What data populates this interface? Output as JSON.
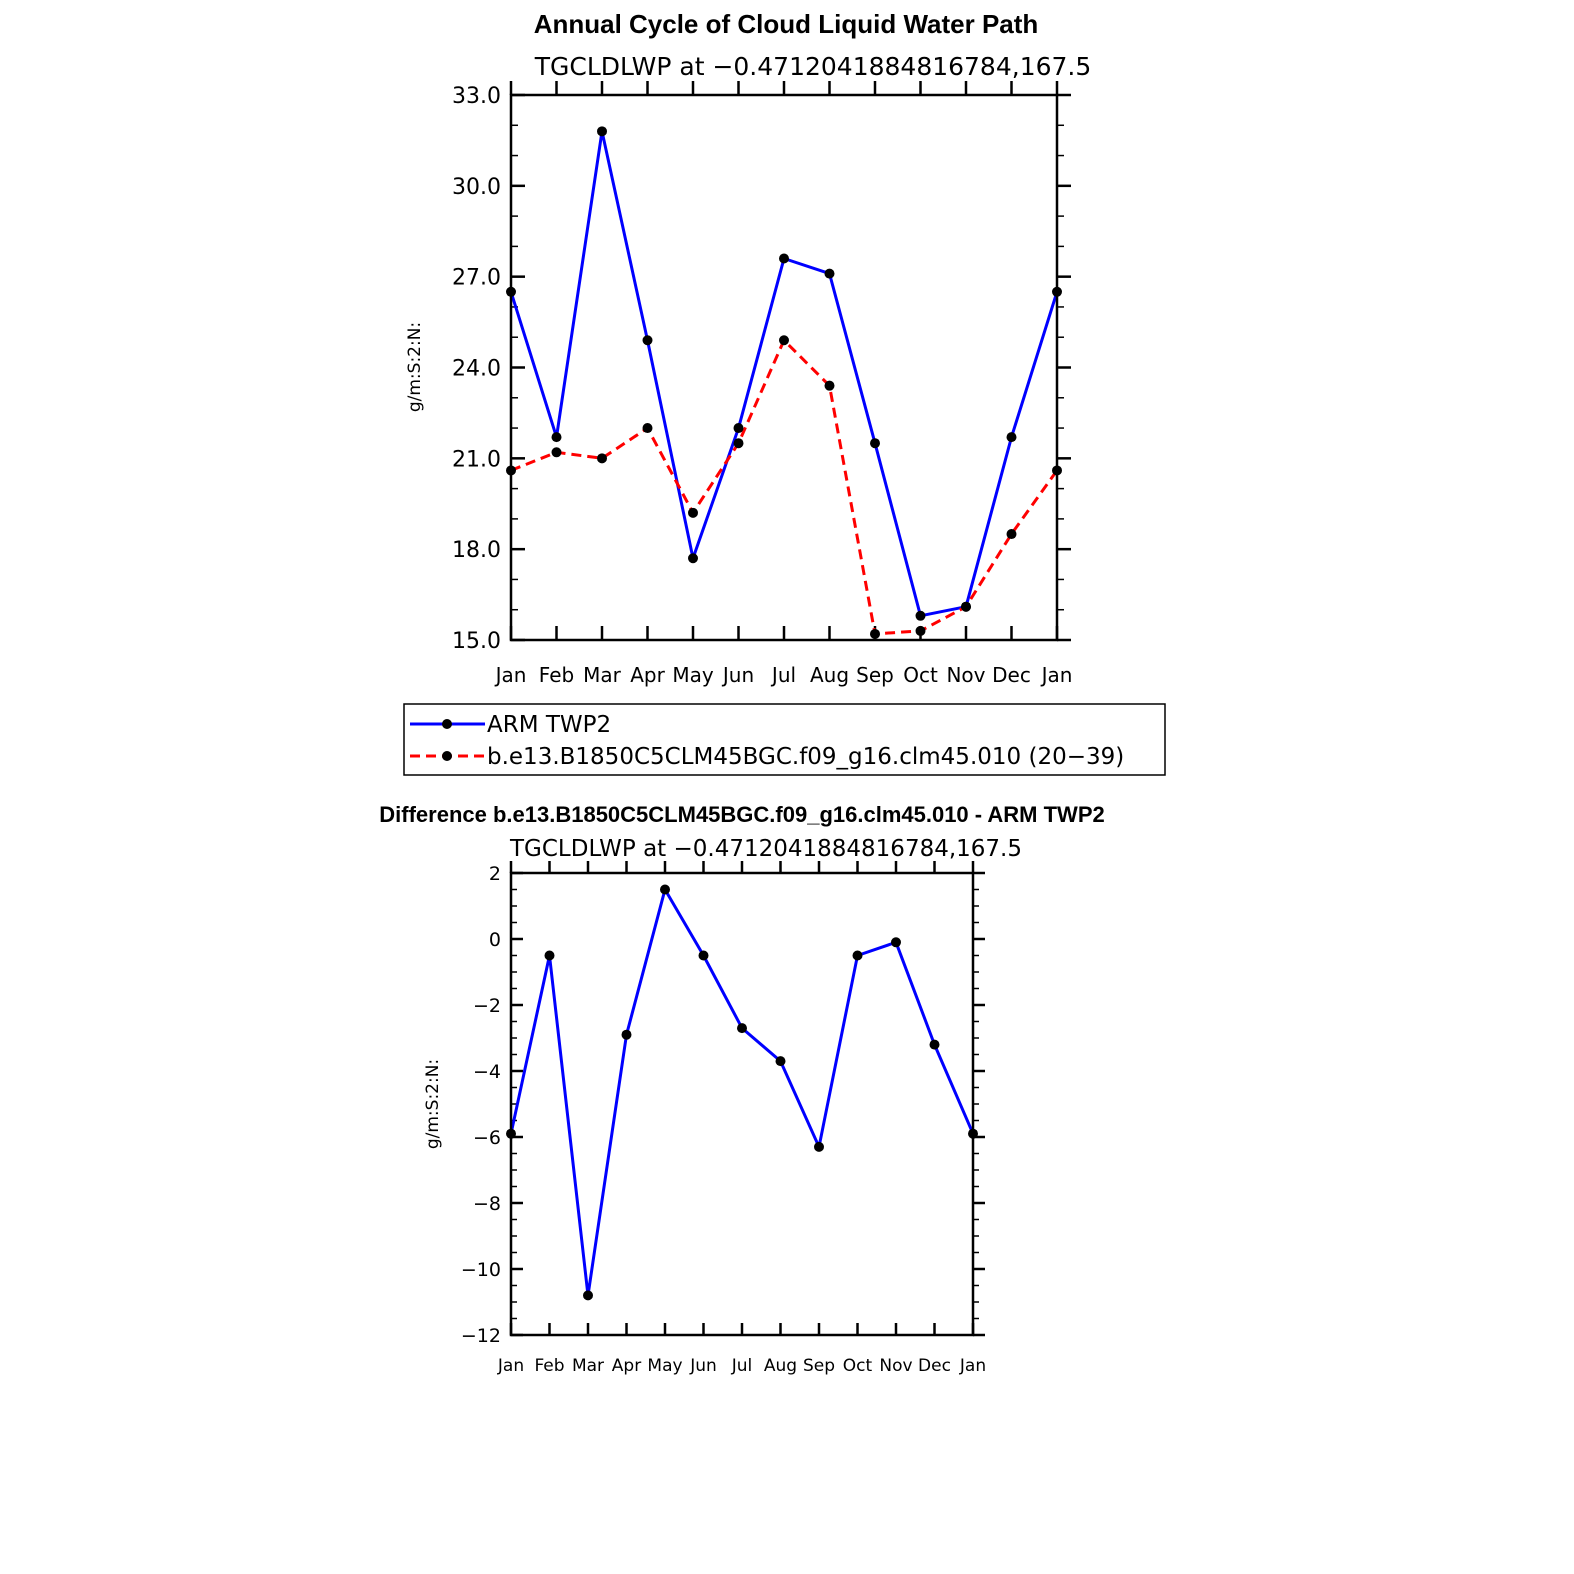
{
  "chart_data": [
    {
      "type": "line",
      "title": "Annual Cycle of Cloud Liquid Water Path",
      "subtitle": "TGCLDLWP at −0.4712041884816784,167.5",
      "xlabel": "",
      "ylabel": "g/m:S:2:N:",
      "ylim": [
        15.0,
        33.0
      ],
      "yticks": [
        "15.0",
        "18.0",
        "21.0",
        "24.0",
        "27.0",
        "30.0",
        "33.0"
      ],
      "categories": [
        "Jan",
        "Feb",
        "Mar",
        "Apr",
        "May",
        "Jun",
        "Jul",
        "Aug",
        "Sep",
        "Oct",
        "Nov",
        "Dec",
        "Jan"
      ],
      "series": [
        {
          "name": "ARM TWP2",
          "color": "#0000ff",
          "dash": "solid",
          "values": [
            26.5,
            21.7,
            31.8,
            24.9,
            17.7,
            22.0,
            27.6,
            27.1,
            21.5,
            15.8,
            16.1,
            21.7,
            26.5
          ]
        },
        {
          "name": "b.e13.B1850C5CLM45BGC.f09_g16.clm45.010 (20−39)",
          "color": "#ff0000",
          "dash": "dashed",
          "values": [
            20.6,
            21.2,
            21.0,
            22.0,
            19.2,
            21.5,
            24.9,
            23.4,
            15.2,
            15.3,
            16.1,
            18.5,
            20.6
          ]
        }
      ],
      "legend": "bottom"
    },
    {
      "type": "line",
      "title": "Difference b.e13.B1850C5CLM45BGC.f09_g16.clm45.010 - ARM TWP2",
      "subtitle": "TGCLDLWP at −0.4712041884816784,167.5",
      "xlabel": "",
      "ylabel": "g/m:S:2:N:",
      "ylim": [
        -12,
        2
      ],
      "yticks": [
        "−12",
        "−10",
        "−8",
        "−6",
        "−4",
        "−2",
        "0",
        "2"
      ],
      "categories": [
        "Jan",
        "Feb",
        "Mar",
        "Apr",
        "May",
        "Jun",
        "Jul",
        "Aug",
        "Sep",
        "Oct",
        "Nov",
        "Dec",
        "Jan"
      ],
      "series": [
        {
          "color": "#0000ff",
          "dash": "solid",
          "values": [
            -5.9,
            -0.5,
            -10.8,
            -2.9,
            1.5,
            -0.5,
            -2.7,
            -3.7,
            -6.3,
            -0.5,
            -0.1,
            -3.2,
            -5.9
          ]
        }
      ]
    }
  ]
}
